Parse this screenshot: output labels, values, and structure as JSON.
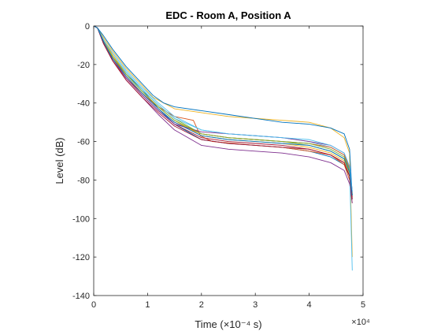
{
  "chart_data": {
    "type": "line",
    "title": "EDC - Room A, Position A",
    "xlabel": "Time (×10⁻⁴ s)",
    "ylabel": "Level (dB)",
    "x_exponent_label": "×10⁴",
    "xlim": [
      0,
      50000
    ],
    "ylim": [
      -140,
      0
    ],
    "x_ticks": [
      0,
      10000,
      20000,
      30000,
      40000,
      50000
    ],
    "x_tick_labels": [
      "0",
      "1",
      "2",
      "3",
      "4",
      "5"
    ],
    "y_ticks": [
      -140,
      -120,
      -100,
      -80,
      -60,
      -40,
      -20,
      0
    ],
    "y_tick_labels": [
      "-140",
      "-120",
      "-100",
      "-80",
      "-60",
      "-40",
      "-20",
      "0"
    ],
    "grid": false,
    "legend": "none",
    "series": [
      {
        "color": "#0072BD",
        "x": [
          0,
          700,
          1800,
          3500,
          6000,
          9000,
          12000,
          15000,
          20000,
          25000,
          30000,
          35000,
          40000,
          44000,
          46500,
          47500,
          48000
        ],
        "y": [
          0,
          -1,
          -8,
          -16,
          -25,
          -33,
          -43,
          -51,
          -59,
          -61,
          -62,
          -63,
          -65,
          -68,
          -72,
          -78,
          -90
        ]
      },
      {
        "color": "#D95319",
        "x": [
          0,
          700,
          1800,
          3500,
          6000,
          9000,
          12000,
          15000,
          18500,
          19800,
          22000,
          26000,
          30000,
          35000,
          40000,
          44000,
          46500,
          47500,
          48000
        ],
        "y": [
          0,
          -1,
          -9,
          -18,
          -27,
          -35,
          -42,
          -47,
          -49,
          -57,
          -60,
          -61,
          -62,
          -63,
          -65,
          -67,
          -72,
          -80,
          -92
        ]
      },
      {
        "color": "#EDB120",
        "x": [
          0,
          700,
          1800,
          3500,
          6000,
          9000,
          11000,
          13000,
          15000,
          20000,
          25000,
          30000,
          35000,
          40000,
          44000,
          46500,
          47500,
          48000
        ],
        "y": [
          0,
          -1,
          -6,
          -13,
          -22,
          -31,
          -37,
          -40,
          -43,
          -45,
          -47,
          -48,
          -49,
          -50,
          -53,
          -58,
          -66,
          -120
        ]
      },
      {
        "color": "#7E2F8E",
        "x": [
          0,
          700,
          1800,
          3500,
          6000,
          9000,
          12000,
          15000,
          20000,
          25000,
          30000,
          35000,
          40000,
          44000,
          46500,
          47500,
          48000
        ],
        "y": [
          0,
          -1,
          -9,
          -18,
          -28,
          -37,
          -46,
          -54,
          -62,
          -64,
          -65,
          -66,
          -68,
          -71,
          -75,
          -82,
          -92
        ]
      },
      {
        "color": "#77AC30",
        "x": [
          0,
          700,
          1800,
          3500,
          6000,
          9000,
          12000,
          15000,
          20000,
          25000,
          30000,
          35000,
          40000,
          44000,
          46500,
          47500,
          48000
        ],
        "y": [
          0,
          -1,
          -7,
          -15,
          -24,
          -33,
          -41,
          -48,
          -56,
          -58,
          -59,
          -60,
          -62,
          -65,
          -69,
          -76,
          -88
        ]
      },
      {
        "color": "#4DBEEE",
        "x": [
          0,
          700,
          1800,
          3500,
          6000,
          9000,
          12000,
          15000,
          20000,
          25000,
          30000,
          35000,
          40000,
          44000,
          46500,
          47500,
          48000
        ],
        "y": [
          0,
          -1,
          -7,
          -15,
          -24,
          -33,
          -41,
          -48,
          -54,
          -56,
          -57,
          -58,
          -60,
          -63,
          -67,
          -74,
          -127
        ]
      },
      {
        "color": "#A2142F",
        "x": [
          0,
          700,
          1800,
          3500,
          6000,
          9000,
          12000,
          15000,
          20000,
          25000,
          30000,
          35000,
          40000,
          44000,
          46500,
          47500,
          48000
        ],
        "y": [
          0,
          -1,
          -8,
          -17,
          -27,
          -36,
          -44,
          -51,
          -58,
          -60,
          -61,
          -62,
          -64,
          -67,
          -71,
          -78,
          -90
        ]
      },
      {
        "color": "#0072BD",
        "x": [
          0,
          700,
          1800,
          3500,
          6000,
          9000,
          11000,
          13000,
          15000,
          20000,
          25000,
          30000,
          35000,
          40000,
          44000,
          46500,
          47500,
          48000
        ],
        "y": [
          0,
          -1,
          -5,
          -12,
          -21,
          -30,
          -36,
          -40,
          -42,
          -44,
          -46,
          -48,
          -50,
          -51,
          -53,
          -56,
          -64,
          -88
        ]
      },
      {
        "color": "#D95319",
        "x": [
          0,
          700,
          1800,
          3500,
          6000,
          9000,
          12000,
          15000,
          20000,
          25000,
          30000,
          35000,
          40000,
          44000,
          46500,
          47500,
          48000
        ],
        "y": [
          0,
          -1,
          -8,
          -16,
          -26,
          -35,
          -43,
          -50,
          -56,
          -58,
          -59,
          -60,
          -61,
          -63,
          -67,
          -74,
          -87
        ]
      },
      {
        "color": "#EDB120",
        "x": [
          0,
          700,
          1800,
          3500,
          6000,
          9000,
          12000,
          15000,
          20000,
          25000,
          30000,
          35000,
          40000,
          44000,
          46500,
          47500,
          48000
        ],
        "y": [
          0,
          -1,
          -7,
          -15,
          -25,
          -34,
          -42,
          -49,
          -57,
          -59,
          -60,
          -61,
          -63,
          -66,
          -70,
          -77,
          -89
        ]
      },
      {
        "color": "#7E2F8E",
        "x": [
          0,
          700,
          1800,
          3500,
          6000,
          9000,
          12000,
          15000,
          20000,
          25000,
          30000,
          35000,
          40000,
          44000,
          46500,
          47500,
          48000
        ],
        "y": [
          0,
          -1,
          -8,
          -17,
          -27,
          -36,
          -44,
          -51,
          -55,
          -56,
          -57,
          -58,
          -60,
          -62,
          -66,
          -73,
          -86
        ]
      },
      {
        "color": "#77AC30",
        "x": [
          0,
          700,
          1800,
          3500,
          6000,
          9000,
          12000,
          15000,
          20000,
          25000,
          30000,
          35000,
          40000,
          44000,
          46500,
          47500,
          48000
        ],
        "y": [
          0,
          -1,
          -8,
          -16,
          -25,
          -34,
          -42,
          -49,
          -56,
          -58,
          -59,
          -60,
          -61,
          -64,
          -68,
          -75,
          -88
        ]
      },
      {
        "color": "#4DBEEE",
        "x": [
          0,
          700,
          1800,
          3500,
          6000,
          9000,
          12000,
          15000,
          20000,
          25000,
          30000,
          35000,
          40000,
          44000,
          46500,
          47500,
          48000
        ],
        "y": [
          0,
          -1,
          -7,
          -14,
          -23,
          -32,
          -40,
          -47,
          -54,
          -56,
          -57,
          -58,
          -59,
          -62,
          -66,
          -73,
          -86
        ]
      },
      {
        "color": "#A2142F",
        "x": [
          0,
          700,
          1800,
          3500,
          6000,
          9000,
          12000,
          15000,
          20000,
          25000,
          30000,
          35000,
          40000,
          44000,
          46500,
          47500,
          48000
        ],
        "y": [
          0,
          -1,
          -9,
          -18,
          -28,
          -37,
          -45,
          -52,
          -59,
          -61,
          -62,
          -63,
          -64,
          -67,
          -71,
          -78,
          -89
        ]
      },
      {
        "color": "#0072BD",
        "x": [
          0,
          700,
          1800,
          3500,
          6000,
          9000,
          12000,
          15000,
          20000,
          25000,
          30000,
          35000,
          40000,
          44000,
          46500,
          47500,
          48000
        ],
        "y": [
          0,
          -1,
          -8,
          -17,
          -26,
          -35,
          -43,
          -50,
          -57,
          -59,
          -60,
          -61,
          -62,
          -65,
          -69,
          -76,
          -88
        ]
      }
    ]
  }
}
